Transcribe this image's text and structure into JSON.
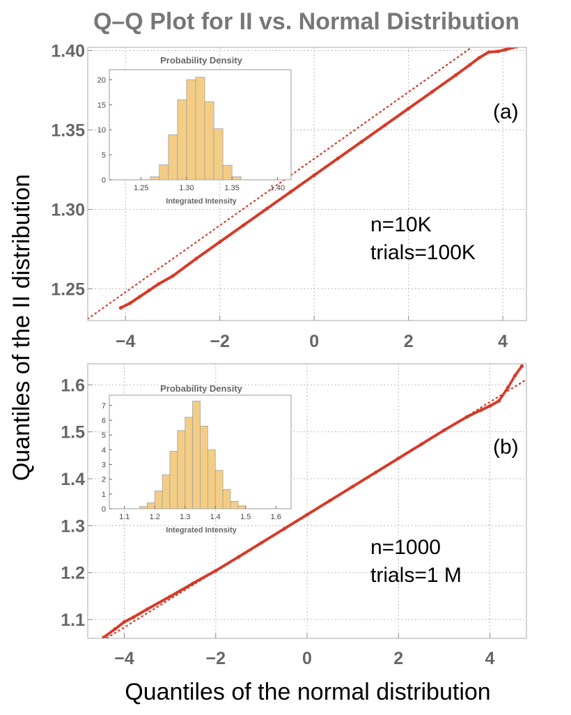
{
  "figure_title": "Q–Q Plot for II vs. Normal Distribution",
  "y_axis_label": "Quantiles of the II distribution",
  "x_axis_label": "Quantiles of the normal distribution",
  "colors": {
    "points": "#d63a28",
    "bars": "#f4cd85",
    "bar_edge": "#a0a0a0",
    "title": "#777777",
    "ticks": "#666666"
  },
  "chart_data": [
    {
      "type": "scatter",
      "panel_label": "(a)",
      "annotation_lines": [
        "n=10K",
        "trials=100K"
      ],
      "xlim": [
        -4.8,
        4.5
      ],
      "ylim": [
        1.23,
        1.402
      ],
      "x_ticks": [
        {
          "value": -4,
          "label": "−4"
        },
        {
          "value": -2,
          "label": "−2"
        },
        {
          "value": 0,
          "label": "0"
        },
        {
          "value": 2,
          "label": "2"
        },
        {
          "value": 4,
          "label": "4"
        }
      ],
      "y_ticks": [
        {
          "value": 1.25,
          "label": "1.25"
        },
        {
          "value": 1.3,
          "label": "1.30"
        },
        {
          "value": 1.35,
          "label": "1.35"
        },
        {
          "value": 1.4,
          "label": "1.40"
        }
      ],
      "series": [
        {
          "name": "sample quantiles",
          "style": "points",
          "x": [
            -4.1,
            -3.9,
            -3.7,
            -3.5,
            -3.3,
            -3.0,
            -2.5,
            -2.0,
            -1.5,
            -1.0,
            -0.5,
            0.0,
            0.5,
            1.0,
            1.5,
            2.0,
            2.5,
            3.0,
            3.3,
            3.5,
            3.7,
            3.9,
            4.05,
            4.3
          ],
          "y": [
            1.238,
            1.241,
            1.245,
            1.249,
            1.253,
            1.258,
            1.269,
            1.2795,
            1.29,
            1.3005,
            1.311,
            1.3215,
            1.332,
            1.3425,
            1.353,
            1.3635,
            1.374,
            1.3845,
            1.391,
            1.3955,
            1.399,
            1.3995,
            1.4005,
            1.4025
          ]
        },
        {
          "name": "normal reference line",
          "style": "dotted",
          "x": [
            -4.8,
            4.5
          ],
          "y": [
            1.2311,
            1.4264
          ]
        }
      ],
      "inset": {
        "type": "histogram",
        "title": "Probability Density",
        "xlabel": "Integrated Intensity",
        "xlim": [
          1.215,
          1.415
        ],
        "ylim": [
          0,
          22
        ],
        "x_ticks": [
          {
            "value": 1.25,
            "label": "1.25"
          },
          {
            "value": 1.3,
            "label": "1.30"
          },
          {
            "value": 1.35,
            "label": "1.35"
          },
          {
            "value": 1.4,
            "label": "1.40"
          }
        ],
        "y_ticks": [
          {
            "value": 0,
            "label": "0"
          },
          {
            "value": 5,
            "label": "5"
          },
          {
            "value": 10,
            "label": "10"
          },
          {
            "value": 15,
            "label": "15"
          },
          {
            "value": 20,
            "label": "20"
          }
        ],
        "bin_edges": [
          1.26,
          1.27,
          1.28,
          1.29,
          1.3,
          1.31,
          1.32,
          1.33,
          1.34,
          1.35,
          1.36
        ],
        "values": [
          0.6,
          3.0,
          9.0,
          16.0,
          20.0,
          20.5,
          15.6,
          10.2,
          2.9,
          0.6
        ]
      }
    },
    {
      "type": "scatter",
      "panel_label": "(b)",
      "annotation_lines": [
        "n=1000",
        "trials=1 M"
      ],
      "xlim": [
        -4.8,
        4.8
      ],
      "ylim": [
        1.06,
        1.645
      ],
      "x_ticks": [
        {
          "value": -4,
          "label": "−4"
        },
        {
          "value": -2,
          "label": "−2"
        },
        {
          "value": 0,
          "label": "0"
        },
        {
          "value": 2,
          "label": "2"
        },
        {
          "value": 4,
          "label": "4"
        }
      ],
      "y_ticks": [
        {
          "value": 1.1,
          "label": "1.1"
        },
        {
          "value": 1.2,
          "label": "1.2"
        },
        {
          "value": 1.3,
          "label": "1.3"
        },
        {
          "value": 1.4,
          "label": "1.4"
        },
        {
          "value": 1.5,
          "label": "1.5"
        },
        {
          "value": 1.6,
          "label": "1.6"
        }
      ],
      "series": [
        {
          "name": "sample quantiles",
          "style": "points",
          "x": [
            -4.45,
            -4.2,
            -4.0,
            -3.8,
            -3.5,
            -3.0,
            -2.5,
            -2.0,
            -1.5,
            -1.0,
            -0.5,
            0.0,
            0.5,
            1.0,
            1.5,
            2.0,
            2.5,
            3.0,
            3.5,
            3.8,
            4.0,
            4.2,
            4.4,
            4.55,
            4.7
          ],
          "y": [
            1.062,
            1.08,
            1.095,
            1.105,
            1.122,
            1.149,
            1.177,
            1.204,
            1.2335,
            1.2635,
            1.2935,
            1.3235,
            1.3535,
            1.3835,
            1.4135,
            1.4435,
            1.4735,
            1.5035,
            1.532,
            1.546,
            1.555,
            1.566,
            1.595,
            1.62,
            1.64
          ]
        },
        {
          "name": "normal reference line",
          "style": "dotted",
          "x": [
            -4.8,
            4.8
          ],
          "y": [
            1.0355,
            1.6115
          ]
        }
      ],
      "inset": {
        "type": "histogram",
        "title": "Probability Density",
        "xlabel": "Integrated Intensity",
        "xlim": [
          1.05,
          1.65
        ],
        "ylim": [
          0,
          7.7
        ],
        "x_ticks": [
          {
            "value": 1.1,
            "label": "1.1"
          },
          {
            "value": 1.2,
            "label": "1.2"
          },
          {
            "value": 1.3,
            "label": "1.3"
          },
          {
            "value": 1.4,
            "label": "1.4"
          },
          {
            "value": 1.5,
            "label": "1.5"
          },
          {
            "value": 1.6,
            "label": "1.6"
          }
        ],
        "y_ticks": [
          {
            "value": 0,
            "label": "0"
          },
          {
            "value": 1,
            "label": "1"
          },
          {
            "value": 2,
            "label": "2"
          },
          {
            "value": 3,
            "label": "3"
          },
          {
            "value": 4,
            "label": "4"
          },
          {
            "value": 5,
            "label": "5"
          },
          {
            "value": 6,
            "label": "6"
          },
          {
            "value": 7,
            "label": "7"
          }
        ],
        "bin_edges": [
          1.15,
          1.175,
          1.2,
          1.225,
          1.25,
          1.275,
          1.3,
          1.325,
          1.35,
          1.375,
          1.4,
          1.425,
          1.45,
          1.475,
          1.5
        ],
        "values": [
          0.15,
          0.4,
          1.2,
          2.3,
          3.9,
          5.3,
          6.2,
          7.3,
          5.6,
          4.0,
          2.6,
          1.3,
          0.5,
          0.2
        ]
      }
    }
  ]
}
